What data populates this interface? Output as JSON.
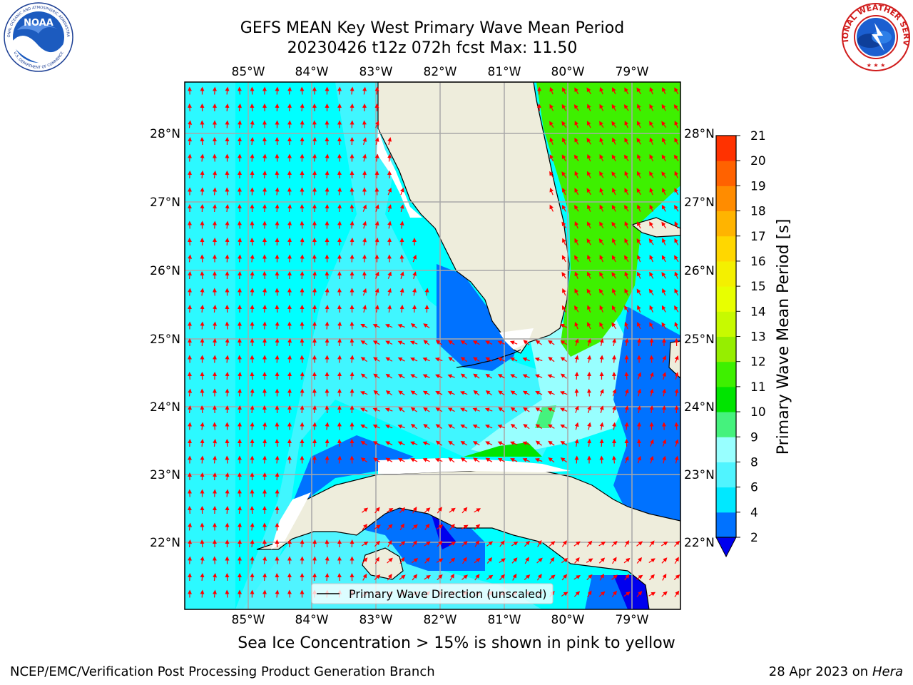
{
  "title_line1": "GEFS MEAN Key West Primary Wave Mean Period",
  "title_line2": "20230426 t12z 072h fcst   Max: 11.50",
  "lon_labels": [
    "85°W",
    "84°W",
    "83°W",
    "82°W",
    "81°W",
    "80°W",
    "79°W"
  ],
  "lat_labels": [
    "28°N",
    "27°N",
    "26°N",
    "25°N",
    "24°N",
    "23°N",
    "22°N"
  ],
  "legend_label": "Primary Wave Direction (unscaled)",
  "colorbar": {
    "label": "Primary Wave Mean Period [s]",
    "ticks": [
      "2",
      "4",
      "6",
      "8",
      "9",
      "10",
      "11",
      "12",
      "13",
      "14",
      "15",
      "16",
      "17",
      "18",
      "19",
      "20",
      "21"
    ],
    "colors": [
      "#0072ff",
      "#00e8ff",
      "#50f4ff",
      "#98ffff",
      "#45f27d",
      "#00e400",
      "#3ef000",
      "#96ee00",
      "#c7fa00",
      "#e8ff00",
      "#f4f000",
      "#ffd700",
      "#ffb400",
      "#ff8c00",
      "#ff6200",
      "#ff3200",
      "#ff0000"
    ],
    "under_color": "#0000ee"
  },
  "map_colors": {
    "land": "#eeeddc",
    "sea_cyan": "#00ffff",
    "sea_light_cyan": "#50f4ff",
    "sea_pale": "#98ffff",
    "sea_blue": "#0072ff",
    "sea_dark_blue": "#0000ee",
    "green": "#3ef000",
    "bright_green": "#00e400",
    "arrow": "#ff0000"
  },
  "sea_ice_note": "Sea Ice Concentration > 15% is shown in pink to yellow",
  "footer_left": "NCEP/EMC/Verification Post Processing Product Generation Branch",
  "footer_right_date": "28 Apr 2023 on",
  "footer_right_machine": "Hera",
  "noaa_logo_text": "NOAA",
  "noaa_ring_text": "NATIONAL OCEANIC AND ATMOSPHERIC ADMINISTRATION",
  "noaa_ring_text_bottom": "U.S. DEPARTMENT OF COMMERCE",
  "nws_ring_text": "NATIONAL WEATHER SERVICE"
}
